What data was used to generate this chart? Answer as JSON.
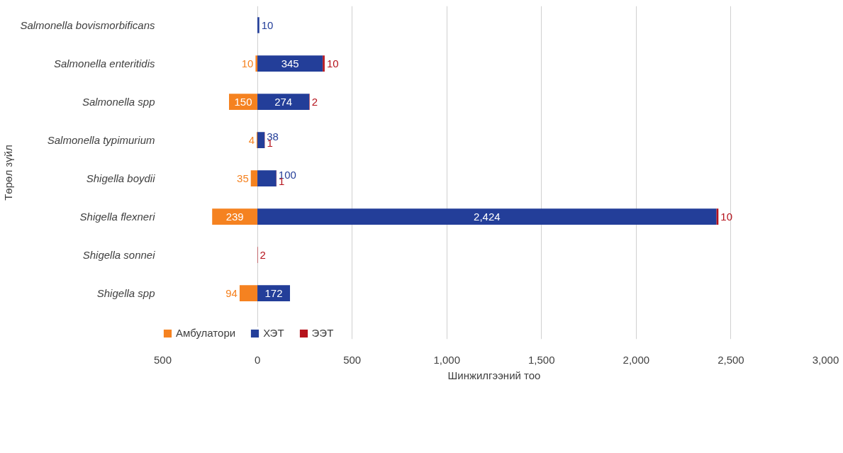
{
  "chart_data": {
    "type": "bar",
    "orientation": "horizontal",
    "stacked": true,
    "categories": [
      "Salmonella bovismorbificans",
      "Salmonella enteritidis",
      "Salmonella spp",
      "Salmonella typimurium",
      "Shigella boydii",
      "Shigella flexneri",
      "Shigella sonnei",
      "Shigella spp"
    ],
    "series": [
      {
        "name": "Амбулатори",
        "color": "#f58220",
        "values": [
          null,
          10,
          150,
          4,
          35,
          239,
          null,
          94
        ],
        "base": [
          null,
          -10,
          -150,
          -4,
          -35,
          -239,
          null,
          -94
        ],
        "value_labels": [
          null,
          "10",
          "150",
          "4",
          "35",
          "239",
          null,
          "94"
        ]
      },
      {
        "name": "ХЭТ",
        "color": "#233e99",
        "values": [
          10,
          345,
          274,
          38,
          100,
          2424,
          null,
          172
        ],
        "value_labels": [
          "10",
          "345",
          "274",
          "38",
          "100",
          "2,424",
          null,
          "172"
        ]
      },
      {
        "name": "ЭЭТ",
        "color": "#b5121b",
        "values": [
          null,
          10,
          2,
          1,
          1,
          10,
          2,
          null
        ],
        "value_labels": [
          null,
          "10",
          "2",
          "1",
          "1",
          "10",
          "2",
          null
        ]
      }
    ],
    "xlim": [
      -500,
      3000
    ],
    "xticks": [
      {
        "value": -500,
        "label": "500"
      },
      0,
      {
        "value": 500,
        "label": "500"
      },
      {
        "value": 1000,
        "label": "1,000"
      },
      {
        "value": 1500,
        "label": "1,500"
      },
      {
        "value": 2000,
        "label": "2,000"
      },
      {
        "value": 2500,
        "label": "2,500"
      },
      {
        "value": 3000,
        "label": "3,000"
      }
    ],
    "xlabel": "Шинжилгээний тоо",
    "ylabel": "Төрөл зүйл",
    "grid": "x",
    "legend": "bottom"
  }
}
